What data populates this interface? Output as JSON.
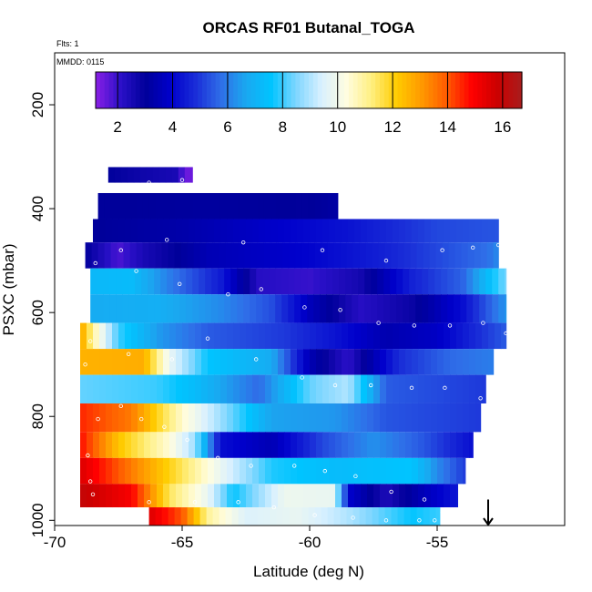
{
  "chart_data": {
    "type": "heatmap",
    "title": "ORCAS RF01 Butanal_TOGA",
    "info_lines": [
      "Flts: 1",
      "MMDD: 0115"
    ],
    "xlabel": "Latitude (deg N)",
    "ylabel": "PSXC (mbar)",
    "xlim": [
      -70,
      -50
    ],
    "ylim": [
      1010,
      100
    ],
    "x_ticks": [
      -70,
      -65,
      -60,
      -55
    ],
    "x_tick_labels": [
      "-70",
      "-65",
      "-60",
      "-55"
    ],
    "y_ticks": [
      200,
      400,
      600,
      800,
      1000
    ],
    "y_tick_labels": [
      "200",
      "400",
      "600",
      "800",
      "1000"
    ],
    "colorbar": {
      "min": 1.2,
      "max": 16.7,
      "ticks": [
        2,
        4,
        6,
        8,
        10,
        12,
        14,
        16
      ],
      "tick_labels": [
        "2",
        "4",
        "6",
        "8",
        "10",
        "12",
        "14",
        "16"
      ],
      "colors": [
        "#8a1fe6",
        "#2a10c8",
        "#00009a",
        "#0000cc",
        "#1a2ed8",
        "#2f6ee8",
        "#1aa8f0",
        "#00c4ff",
        "#7fd6ff",
        "#d8f0ff",
        "#fffde0",
        "#ffef80",
        "#ffcc00",
        "#ff9900",
        "#ff5a00",
        "#ff0000",
        "#cc0000",
        "#a81c1c"
      ]
    },
    "bands": [
      {
        "p_top": 320,
        "p_bot": 350,
        "x0": -67.9,
        "x1": -64.6,
        "knots": [
          [
            -67.9,
            3.0
          ],
          [
            -66.5,
            2.7
          ],
          [
            -65.2,
            2.5
          ],
          [
            -64.9,
            1.5
          ]
        ]
      },
      {
        "p_top": 370,
        "p_bot": 420,
        "x0": -68.3,
        "x1": -58.9,
        "knots": [
          [
            -68.3,
            3.0
          ],
          [
            -64.0,
            3.1
          ],
          [
            -60.0,
            3.0
          ],
          [
            -58.9,
            3.2
          ]
        ]
      },
      {
        "p_top": 420,
        "p_bot": 465,
        "x0": -68.5,
        "x1": -52.6,
        "knots": [
          [
            -68.5,
            3.0
          ],
          [
            -65.0,
            3.3
          ],
          [
            -62.0,
            3.8
          ],
          [
            -58.5,
            4.3
          ],
          [
            -55.0,
            5.2
          ],
          [
            -52.6,
            5.4
          ]
        ]
      },
      {
        "p_top": 465,
        "p_bot": 515,
        "x0": -68.8,
        "x1": -52.6,
        "knots": [
          [
            -68.8,
            3.0
          ],
          [
            -67.5,
            1.8
          ],
          [
            -66.5,
            2.5
          ],
          [
            -64.0,
            3.5
          ],
          [
            -60.0,
            4.0
          ],
          [
            -57.0,
            4.6
          ],
          [
            -53.0,
            5.8
          ],
          [
            -52.6,
            6.2
          ]
        ]
      },
      {
        "p_top": 515,
        "p_bot": 565,
        "x0": -68.6,
        "x1": -52.3,
        "knots": [
          [
            -68.6,
            7.2
          ],
          [
            -67.0,
            7.3
          ],
          [
            -65.5,
            6.0
          ],
          [
            -63.5,
            4.5
          ],
          [
            -62.0,
            2.2
          ],
          [
            -60.0,
            2.0
          ],
          [
            -58.0,
            2.6
          ],
          [
            -56.0,
            4.6
          ],
          [
            -54.0,
            5.6
          ],
          [
            -52.3,
            8.5
          ]
        ]
      },
      {
        "p_top": 565,
        "p_bot": 620,
        "x0": -68.6,
        "x1": -52.3,
        "knots": [
          [
            -68.6,
            6.8
          ],
          [
            -66.0,
            6.9
          ],
          [
            -63.5,
            6.2
          ],
          [
            -61.5,
            5.3
          ],
          [
            -60.0,
            3.6
          ],
          [
            -58.0,
            2.2
          ],
          [
            -56.0,
            2.8
          ],
          [
            -54.0,
            4.2
          ],
          [
            -52.3,
            6.4
          ]
        ]
      },
      {
        "p_top": 620,
        "p_bot": 670,
        "x0": -69.0,
        "x1": -52.3,
        "knots": [
          [
            -69.0,
            13.0
          ],
          [
            -68.5,
            11.0
          ],
          [
            -67.5,
            8.0
          ],
          [
            -66.0,
            6.5
          ],
          [
            -64.0,
            5.5
          ],
          [
            -61.0,
            5.0
          ],
          [
            -59.0,
            4.3
          ],
          [
            -57.0,
            3.4
          ],
          [
            -55.0,
            3.8
          ],
          [
            -52.3,
            5.5
          ]
        ]
      },
      {
        "p_top": 670,
        "p_bot": 720,
        "x0": -69.0,
        "x1": -52.8,
        "knots": [
          [
            -69.0,
            12.6
          ],
          [
            -66.5,
            12.7
          ],
          [
            -65.5,
            9.8
          ],
          [
            -64.0,
            7.6
          ],
          [
            -61.5,
            6.8
          ],
          [
            -60.0,
            3.5
          ],
          [
            -58.5,
            2.1
          ],
          [
            -56.5,
            4.8
          ],
          [
            -54.5,
            5.7
          ],
          [
            -52.8,
            6.0
          ]
        ]
      },
      {
        "p_top": 720,
        "p_bot": 775,
        "x0": -69.0,
        "x1": -53.1,
        "knots": [
          [
            -69.0,
            8.3
          ],
          [
            -66.0,
            8.0
          ],
          [
            -64.5,
            7.3
          ],
          [
            -62.0,
            5.7
          ],
          [
            -60.0,
            8.3
          ],
          [
            -58.5,
            9.0
          ],
          [
            -57.0,
            5.5
          ],
          [
            -53.1,
            5.0
          ]
        ]
      },
      {
        "p_top": 775,
        "p_bot": 830,
        "x0": -69.0,
        "x1": -53.3,
        "knots": [
          [
            -69.0,
            14.5
          ],
          [
            -67.0,
            13.5
          ],
          [
            -65.0,
            10.5
          ],
          [
            -63.5,
            8.8
          ],
          [
            -61.5,
            6.6
          ],
          [
            -59.0,
            6.4
          ],
          [
            -57.0,
            5.4
          ],
          [
            -53.3,
            5.0
          ]
        ]
      },
      {
        "p_top": 830,
        "p_bot": 880,
        "x0": -69.0,
        "x1": -53.6,
        "knots": [
          [
            -69.0,
            14.8
          ],
          [
            -67.5,
            12.3
          ],
          [
            -65.5,
            10.4
          ],
          [
            -64.5,
            8.8
          ],
          [
            -63.5,
            4.2
          ],
          [
            -61.5,
            3.5
          ],
          [
            -59.5,
            5.2
          ],
          [
            -57.5,
            6.3
          ],
          [
            -55.5,
            5.4
          ],
          [
            -53.6,
            4.2
          ]
        ]
      },
      {
        "p_top": 880,
        "p_bot": 930,
        "x0": -69.0,
        "x1": -53.9,
        "knots": [
          [
            -69.0,
            15.5
          ],
          [
            -66.5,
            13.0
          ],
          [
            -65.0,
            11.5
          ],
          [
            -63.5,
            9.8
          ],
          [
            -61.5,
            7.8
          ],
          [
            -59.0,
            7.3
          ],
          [
            -56.0,
            7.6
          ],
          [
            -55.0,
            6.2
          ],
          [
            -53.9,
            5.0
          ]
        ]
      },
      {
        "p_top": 930,
        "p_bot": 975,
        "x0": -69.0,
        "x1": -54.2,
        "knots": [
          [
            -69.0,
            16.0
          ],
          [
            -67.0,
            15.0
          ],
          [
            -65.5,
            11.5
          ],
          [
            -64.0,
            9.8
          ],
          [
            -63.0,
            7.6
          ],
          [
            -61.0,
            9.9
          ],
          [
            -59.0,
            9.8
          ],
          [
            -58.5,
            4.0
          ],
          [
            -57.0,
            2.4
          ],
          [
            -55.5,
            3.6
          ],
          [
            -54.2,
            4.4
          ]
        ]
      },
      {
        "p_top": 975,
        "p_bot": 1010,
        "x0": -66.3,
        "x1": -54.9,
        "knots": [
          [
            -66.3,
            15.5
          ],
          [
            -65.0,
            14.0
          ],
          [
            -64.0,
            11.0
          ],
          [
            -62.5,
            9.5
          ],
          [
            -60.5,
            9.8
          ],
          [
            -58.5,
            9.0
          ],
          [
            -56.0,
            7.6
          ],
          [
            -54.9,
            8.0
          ]
        ]
      }
    ],
    "markers": [
      [
        -67.5,
        355
      ],
      [
        -66.3,
        350
      ],
      [
        -65.0,
        345
      ],
      [
        -63.5,
        330
      ],
      [
        -61.0,
        315
      ],
      [
        -59.5,
        300
      ],
      [
        -58.0,
        290
      ],
      [
        -57.5,
        280
      ],
      [
        -57.1,
        275
      ],
      [
        -67.4,
        480
      ],
      [
        -65.6,
        460
      ],
      [
        -62.6,
        465
      ],
      [
        -59.5,
        480
      ],
      [
        -57.0,
        500
      ],
      [
        -54.8,
        480
      ],
      [
        -53.6,
        475
      ],
      [
        -52.6,
        470
      ],
      [
        -68.4,
        505
      ],
      [
        -66.8,
        520
      ],
      [
        -65.1,
        545
      ],
      [
        -63.2,
        565
      ],
      [
        -61.9,
        555
      ],
      [
        -60.2,
        590
      ],
      [
        -58.8,
        595
      ],
      [
        -57.3,
        620
      ],
      [
        -55.9,
        625
      ],
      [
        -54.5,
        625
      ],
      [
        -53.2,
        620
      ],
      [
        -52.3,
        640
      ],
      [
        -68.6,
        655
      ],
      [
        -67.1,
        680
      ],
      [
        -65.4,
        690
      ],
      [
        -64.0,
        650
      ],
      [
        -62.1,
        690
      ],
      [
        -60.3,
        725
      ],
      [
        -59.0,
        740
      ],
      [
        -57.6,
        740
      ],
      [
        -56.0,
        745
      ],
      [
        -54.7,
        745
      ],
      [
        -53.3,
        765
      ],
      [
        -68.8,
        700
      ],
      [
        -68.3,
        805
      ],
      [
        -67.4,
        780
      ],
      [
        -66.6,
        805
      ],
      [
        -65.7,
        820
      ],
      [
        -64.8,
        845
      ],
      [
        -63.6,
        880
      ],
      [
        -62.3,
        895
      ],
      [
        -60.6,
        895
      ],
      [
        -59.4,
        905
      ],
      [
        -58.2,
        915
      ],
      [
        -56.8,
        945
      ],
      [
        -55.5,
        960
      ],
      [
        -54.8,
        985
      ],
      [
        -54.2,
        985
      ],
      [
        -68.7,
        875
      ],
      [
        -68.6,
        925
      ],
      [
        -68.5,
        950
      ],
      [
        -66.3,
        965
      ],
      [
        -64.5,
        965
      ],
      [
        -62.8,
        965
      ],
      [
        -61.4,
        975
      ],
      [
        -59.8,
        990
      ],
      [
        -58.3,
        995
      ],
      [
        -57.0,
        1000
      ],
      [
        -55.7,
        1000
      ],
      [
        -55.1,
        1000
      ]
    ],
    "arrow": {
      "x": -53.0,
      "p_from": 960,
      "p_to": 1010
    }
  }
}
